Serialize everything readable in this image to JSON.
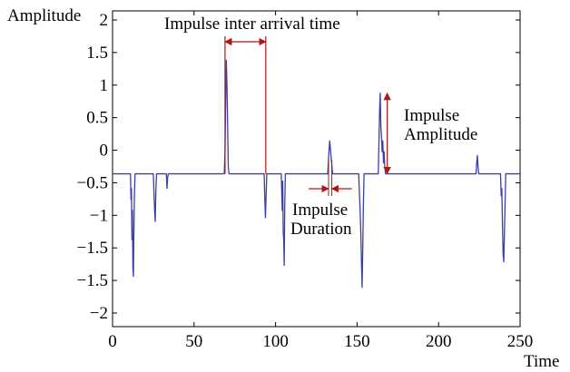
{
  "chart_data": {
    "type": "line",
    "title": "",
    "ylabel": "Amplitude",
    "xlabel": "Time",
    "xlim": [
      0,
      250
    ],
    "ylim": [
      -2,
      2
    ],
    "grid": false,
    "x_ticks": [
      "0",
      "50",
      "100",
      "150",
      "200",
      "250"
    ],
    "y_ticks": [
      "2",
      "1.5",
      "1",
      "0.5",
      "0",
      "−0.5",
      "−1",
      "−1.5",
      "−1.5",
      "−2"
    ],
    "baseline": -0.1,
    "series": [
      {
        "color": "#3b3fa8",
        "points": [
          [
            0,
            -0.1
          ],
          [
            11,
            -0.1
          ],
          [
            11.3,
            -0.45
          ],
          [
            11.6,
            -0.3
          ],
          [
            11.9,
            -1.0
          ],
          [
            12.2,
            -0.6
          ],
          [
            12.5,
            -1.4
          ],
          [
            12.8,
            -1.5
          ],
          [
            13.1,
            -0.9
          ],
          [
            13.4,
            -0.4
          ],
          [
            13.8,
            -0.1
          ],
          [
            25,
            -0.1
          ],
          [
            25.4,
            -0.35
          ],
          [
            25.8,
            -0.6
          ],
          [
            26.2,
            -0.75
          ],
          [
            26.6,
            -0.3
          ],
          [
            27,
            -0.1
          ],
          [
            33,
            -0.1
          ],
          [
            33.4,
            -0.3
          ],
          [
            33.8,
            -0.15
          ],
          [
            34.2,
            -0.1
          ],
          [
            68.5,
            -0.1
          ],
          [
            69,
            0.2
          ],
          [
            69.4,
            0.9
          ],
          [
            69.8,
            1.45
          ],
          [
            70.2,
            1.1
          ],
          [
            70.6,
            0.55
          ],
          [
            71,
            0.0
          ],
          [
            71.4,
            -0.1
          ],
          [
            93,
            -0.1
          ],
          [
            93.4,
            -0.45
          ],
          [
            93.8,
            -0.7
          ],
          [
            94.2,
            -0.4
          ],
          [
            94.6,
            -0.1
          ],
          [
            103.5,
            -0.1
          ],
          [
            103.8,
            -0.35
          ],
          [
            104.1,
            -0.6
          ],
          [
            104.4,
            -0.2
          ],
          [
            104.7,
            -0.9
          ],
          [
            105,
            -1.0
          ],
          [
            105.3,
            -1.35
          ],
          [
            105.6,
            -0.6
          ],
          [
            106,
            -0.1
          ],
          [
            132,
            -0.1
          ],
          [
            132.6,
            0.15
          ],
          [
            133.2,
            0.35
          ],
          [
            133.8,
            0.2
          ],
          [
            134.4,
            0.05
          ],
          [
            135,
            -0.1
          ],
          [
            151,
            -0.1
          ],
          [
            151.5,
            -0.4
          ],
          [
            151.9,
            -0.6
          ],
          [
            152.3,
            -0.9
          ],
          [
            152.7,
            -1.3
          ],
          [
            153.1,
            -1.65
          ],
          [
            153.5,
            -1.1
          ],
          [
            153.9,
            -0.5
          ],
          [
            154.3,
            -0.1
          ],
          [
            163,
            -0.1
          ],
          [
            163.4,
            0.3
          ],
          [
            163.8,
            0.75
          ],
          [
            164.2,
            1.0
          ],
          [
            164.6,
            0.55
          ],
          [
            165,
            0.4
          ],
          [
            165.4,
            0.2
          ],
          [
            165.8,
            0.35
          ],
          [
            166.2,
            0.05
          ],
          [
            166.6,
            0.2
          ],
          [
            167,
            0.0
          ],
          [
            167.5,
            -0.1
          ],
          [
            223,
            -0.1
          ],
          [
            223.4,
            0.05
          ],
          [
            223.8,
            0.15
          ],
          [
            224.2,
            0.0
          ],
          [
            224.6,
            -0.1
          ],
          [
            238,
            -0.1
          ],
          [
            238.4,
            -0.4
          ],
          [
            238.8,
            -0.3
          ],
          [
            239.2,
            -0.8
          ],
          [
            239.6,
            -1.2
          ],
          [
            240,
            -1.3
          ],
          [
            240.4,
            -0.9
          ],
          [
            240.8,
            -0.5
          ],
          [
            241.2,
            -0.1
          ],
          [
            250,
            -0.1
          ]
        ]
      }
    ],
    "annotations": {
      "interval_label": "Impulse inter arrival time",
      "duration_label_1": "Impulse",
      "duration_label_2": "Duration",
      "amplitude_label_1": "Impulse",
      "amplitude_label_2": "Amplitude"
    },
    "annotation_color": "#b01818",
    "interval_x": [
      69,
      94
    ],
    "duration_x": [
      132.5,
      134.5
    ],
    "amplitude_x": 168.5,
    "amplitude_y": [
      1.0,
      -0.1
    ]
  }
}
